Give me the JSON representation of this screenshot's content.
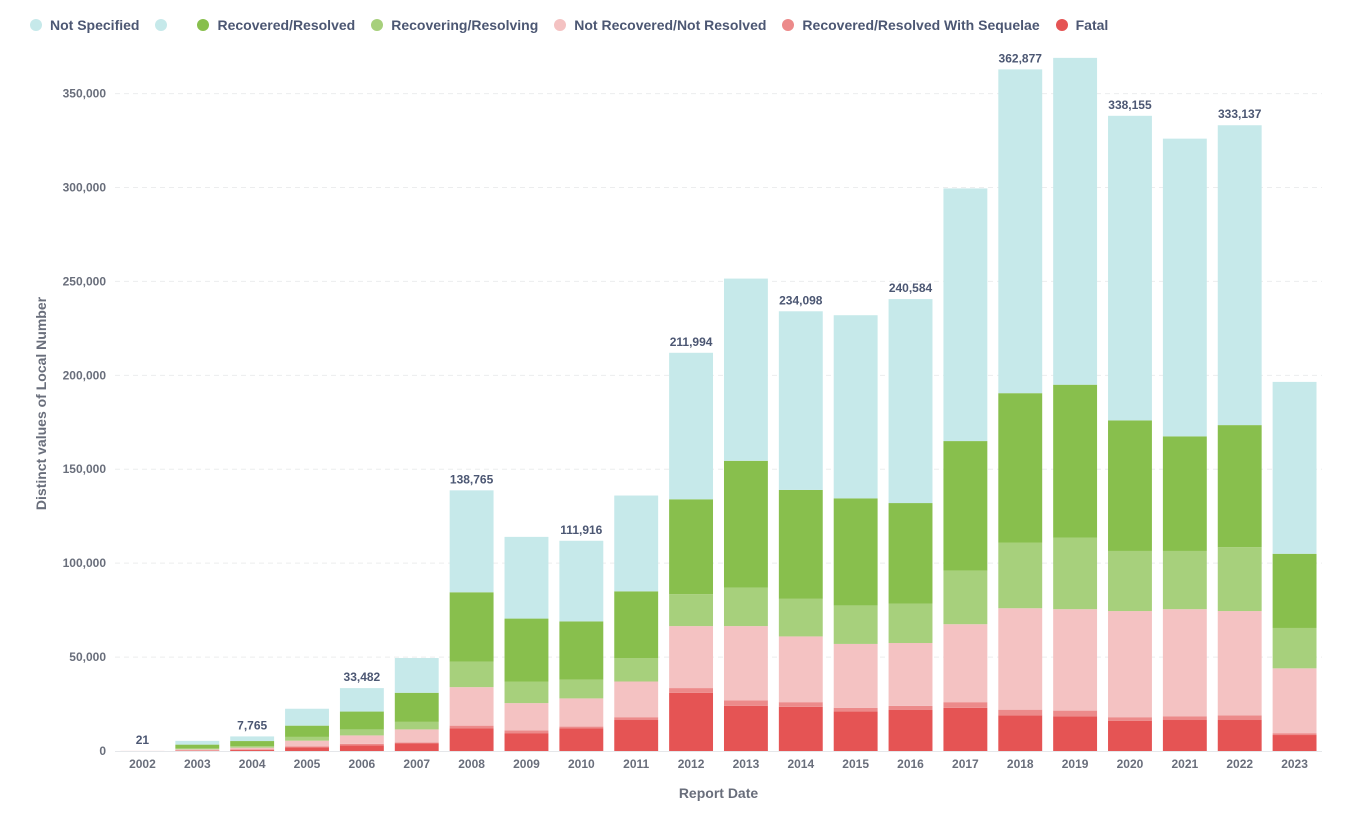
{
  "chart_data": {
    "type": "bar",
    "stacked": true,
    "xlabel": "Report Date",
    "ylabel": "Distinct values of Local Number",
    "ylim": [
      0,
      370000
    ],
    "y_ticks": [
      0,
      50000,
      100000,
      150000,
      200000,
      250000,
      300000,
      350000
    ],
    "y_tick_labels": [
      "0",
      "50,000",
      "100,000",
      "150,000",
      "200,000",
      "250,000",
      "300,000",
      "350,000"
    ],
    "grid": true,
    "legend_position": "top-left",
    "categories": [
      "2002",
      "2003",
      "2004",
      "2005",
      "2006",
      "2007",
      "2008",
      "2009",
      "2010",
      "2011",
      "2012",
      "2013",
      "2014",
      "2015",
      "2016",
      "2017",
      "2018",
      "2019",
      "2020",
      "2021",
      "2022",
      "2023"
    ],
    "legend": [
      {
        "label": "Not Specified",
        "color": "#c6e9ea"
      },
      {
        "label": "",
        "color": "#c6e9ea"
      },
      {
        "label": "Recovered/Resolved",
        "color": "#88bf4d"
      },
      {
        "label": "Recovering/Resolving",
        "color": "#a7d07c"
      },
      {
        "label": "Not Recovered/Not Resolved",
        "color": "#f4c2c2"
      },
      {
        "label": "Recovered/Resolved With Sequelae",
        "color": "#ec8a8a"
      },
      {
        "label": "Fatal",
        "color": "#e55454"
      }
    ],
    "series": [
      {
        "name": "Fatal",
        "color": "#e55454",
        "values": [
          21,
          300,
          600,
          2000,
          3000,
          4000,
          12000,
          9500,
          12000,
          16500,
          31000,
          24000,
          23500,
          21000,
          22000,
          23000,
          19000,
          18500,
          16000,
          16500,
          16500,
          8500
        ]
      },
      {
        "name": "Recovered/Resolved With Sequelae",
        "color": "#ec8a8a",
        "values": [
          0,
          100,
          200,
          500,
          800,
          500,
          1500,
          1500,
          1000,
          1500,
          2500,
          3000,
          2500,
          2000,
          2000,
          3000,
          3000,
          3000,
          2000,
          2000,
          2500,
          1000
        ]
      },
      {
        "name": "Not Recovered/Not Resolved",
        "color": "#f4c2c2",
        "values": [
          0,
          500,
          1000,
          3000,
          4500,
          7000,
          20500,
          14500,
          15000,
          19000,
          33000,
          39500,
          35000,
          34000,
          33500,
          41500,
          54000,
          54000,
          56500,
          57000,
          55500,
          34500
        ]
      },
      {
        "name": "Recovering/Resolving",
        "color": "#a7d07c",
        "values": [
          0,
          500,
          800,
          2000,
          3200,
          4000,
          13500,
          11500,
          10000,
          12500,
          17000,
          20500,
          20000,
          20500,
          21000,
          28500,
          35000,
          38000,
          32000,
          31000,
          34000,
          21500
        ]
      },
      {
        "name": "Recovered/Resolved",
        "color": "#88bf4d",
        "values": [
          0,
          2000,
          2700,
          6000,
          9500,
          15500,
          37000,
          33500,
          31000,
          35500,
          50500,
          67500,
          58000,
          57000,
          53500,
          69000,
          79500,
          81500,
          69500,
          61000,
          65000,
          39500
        ]
      },
      {
        "name": "Not Specified",
        "color": "#c6e9ea",
        "values": [
          0,
          2000,
          2465,
          9000,
          12482,
          18500,
          54265,
          43500,
          42916,
          51000,
          77994,
          97000,
          95098,
          97500,
          108584,
          134500,
          172377,
          174000,
          162155,
          158500,
          159637,
          91500
        ]
      }
    ],
    "total_labels": [
      {
        "category": "2002",
        "text": "21",
        "total": 21
      },
      {
        "category": "2004",
        "text": "7,765",
        "total": 7765
      },
      {
        "category": "2006",
        "text": "33,482",
        "total": 33482
      },
      {
        "category": "2008",
        "text": "138,765",
        "total": 138765
      },
      {
        "category": "2010",
        "text": "111,916",
        "total": 111916
      },
      {
        "category": "2012",
        "text": "211,994",
        "total": 211994
      },
      {
        "category": "2014",
        "text": "234,098",
        "total": 234098
      },
      {
        "category": "2016",
        "text": "240,584",
        "total": 240584
      },
      {
        "category": "2018",
        "text": "362,877",
        "total": 362877
      },
      {
        "category": "2020",
        "text": "338,155",
        "total": 338155
      },
      {
        "category": "2022",
        "text": "333,137",
        "total": 333137
      }
    ]
  }
}
